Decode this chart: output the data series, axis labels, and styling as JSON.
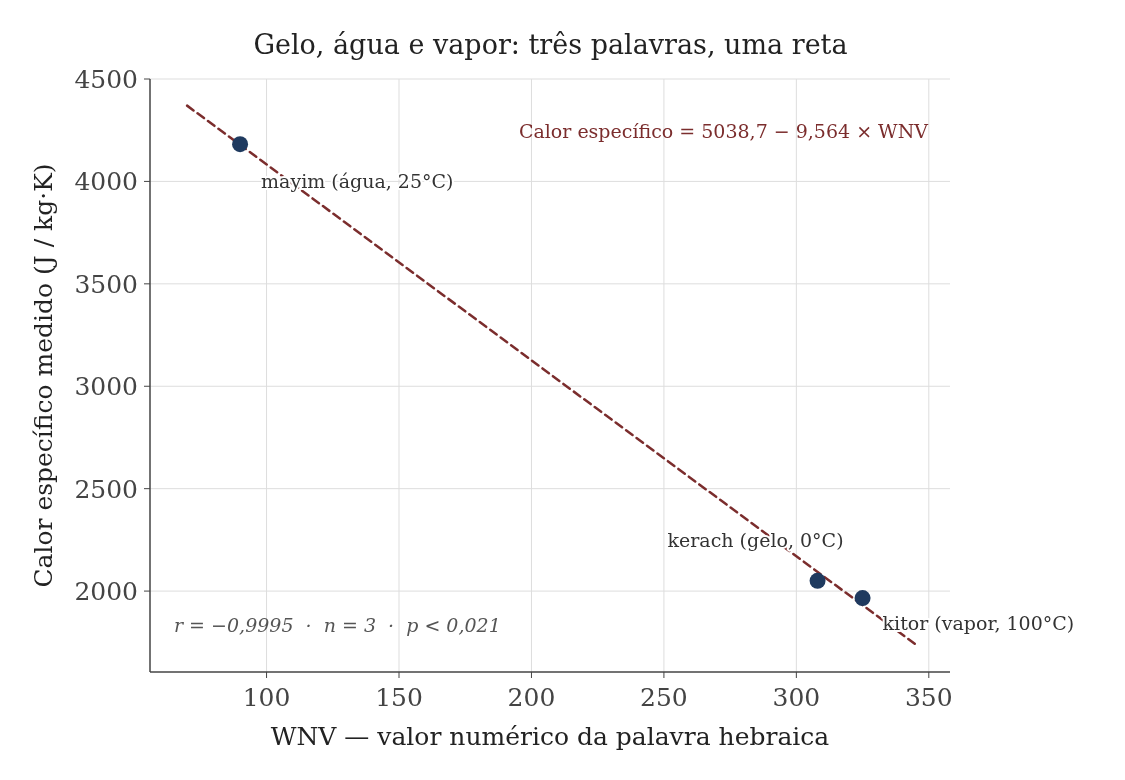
{
  "chart_data": {
    "type": "scatter",
    "title": "Gelo, água e vapor: três palavras, uma reta",
    "xlabel": "WNV — valor numérico da palavra hebraica",
    "ylabel": "Calor específico medido (J / kg·K)",
    "xlim": [
      56,
      358
    ],
    "ylim": [
      1605,
      4500
    ],
    "xticks": [
      100,
      150,
      200,
      250,
      300,
      350
    ],
    "yticks": [
      2000,
      2500,
      3000,
      3500,
      4000,
      4500
    ],
    "grid": true,
    "marker": "circle",
    "series": [
      {
        "color": "#1f3a5f",
        "x": [
          90,
          308,
          325
        ],
        "values": [
          4182,
          2050,
          1966
        ]
      },
      {
        "type": "line",
        "color": "#7b2d2d",
        "line_style": "dashed",
        "marker": "none",
        "x": [
          70,
          345
        ],
        "values": [
          4370,
          1740
        ]
      }
    ],
    "annotations": [
      {
        "text": "mayim (água, 25°C)",
        "x": 90,
        "y": 4182
      },
      {
        "text": "kerach (gelo, 0°C)",
        "x": 308,
        "y": 2050
      },
      {
        "text": "kitor (vapor, 100°C)",
        "x": 325,
        "y": 1966
      },
      "Calor específico = 5038,7 − 9,564 × WNV",
      "r = −0,9995  ·  n = 3  ·  p < 0,021"
    ]
  }
}
